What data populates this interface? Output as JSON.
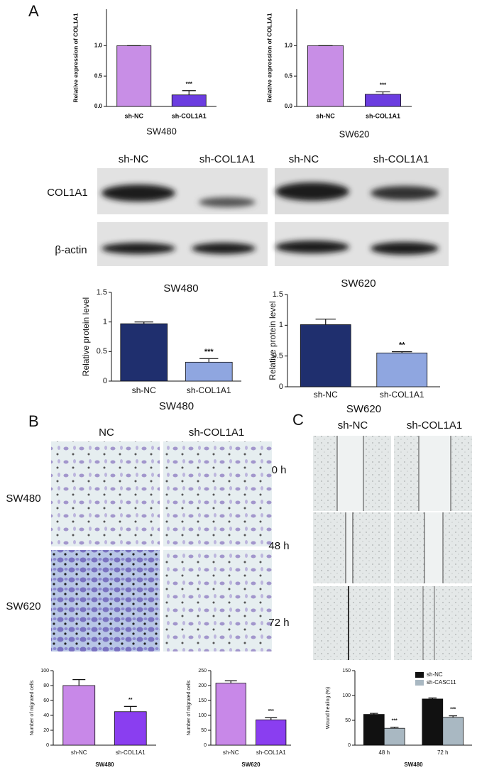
{
  "panels": {
    "A": {
      "label": "A",
      "blot": {
        "lanes": [
          "sh-NC",
          "sh-COL1A1",
          "sh-NC",
          "sh-COL1A1"
        ],
        "proteins": [
          "COL1A1",
          "β-actin"
        ],
        "cell_lines": [
          "SW480",
          "SW620"
        ]
      }
    },
    "B": {
      "label": "B",
      "columns": [
        "NC",
        "sh-COL1A1"
      ],
      "rows": [
        "SW480",
        "SW620"
      ]
    },
    "C": {
      "label": "C",
      "columns": [
        "sh-NC",
        "sh-COL1A1"
      ],
      "rows": [
        "0 h",
        "48 h",
        "72 h"
      ]
    }
  },
  "chart_data": [
    {
      "type": "bar",
      "ylabel": "Relative expression of COL1A1",
      "xlabel": "SW480",
      "categories": [
        "sh-NC",
        "sh-COL1A1"
      ],
      "values": [
        1.0,
        0.19
      ],
      "errors": [
        0,
        0.07
      ],
      "annotations": [
        null,
        "***"
      ],
      "colors": [
        "#c88ee6",
        "#6b3de0"
      ],
      "ylim": [
        0,
        1.6
      ],
      "yticks": [
        {
          "value": 0,
          "label": "0.0"
        },
        {
          "value": 0.5,
          "label": "0.5"
        },
        {
          "value": 1,
          "label": "1.0"
        }
      ]
    },
    {
      "type": "bar",
      "ylabel": "Relative expression of COL1A1",
      "xlabel": "SW620",
      "categories": [
        "sh-NC",
        "sh-COL1A1"
      ],
      "values": [
        1.0,
        0.2
      ],
      "errors": [
        0,
        0.04
      ],
      "annotations": [
        null,
        "***"
      ],
      "colors": [
        "#c88ee6",
        "#6b3de0"
      ],
      "ylim": [
        0,
        1.6
      ],
      "yticks": [
        {
          "value": 0,
          "label": "0.0"
        },
        {
          "value": 0.5,
          "label": "0.5"
        },
        {
          "value": 1,
          "label": "1.0"
        }
      ]
    },
    {
      "type": "bar",
      "ylabel": "Relative protein level",
      "xlabel": "SW480",
      "categories": [
        "sh-NC",
        "sh-COL1A1"
      ],
      "values": [
        0.97,
        0.32
      ],
      "errors": [
        0.03,
        0.06
      ],
      "annotations": [
        null,
        "***"
      ],
      "colors": [
        "#1f2f6e",
        "#8fa6e0"
      ],
      "ylim": [
        0,
        1.5
      ],
      "yticks": [
        0,
        0.5,
        1,
        1.5
      ]
    },
    {
      "type": "bar",
      "ylabel": "Relative protein level",
      "xlabel": "SW620",
      "categories": [
        "sh-NC",
        "sh-COL1A1"
      ],
      "values": [
        1.01,
        0.55
      ],
      "errors": [
        0.09,
        0.02
      ],
      "annotations": [
        null,
        "**"
      ],
      "colors": [
        "#1f2f6e",
        "#8fa6e0"
      ],
      "ylim": [
        0,
        1.5
      ],
      "yticks": [
        0,
        0.5,
        1,
        1.5
      ]
    },
    {
      "type": "bar",
      "ylabel": "Number of migrated cells",
      "xlabel": "SW480",
      "categories": [
        "sh-NC",
        "sh-COL1A1"
      ],
      "values": [
        80,
        45
      ],
      "errors": [
        8,
        7
      ],
      "annotations": [
        null,
        "**"
      ],
      "colors": [
        "#c888e8",
        "#8a3ef0"
      ],
      "ylim": [
        0,
        100
      ],
      "yticks": [
        0,
        20,
        40,
        60,
        80,
        100
      ]
    },
    {
      "type": "bar",
      "ylabel": "Number of migrated cells",
      "xlabel": "SW620",
      "categories": [
        "sh-NC",
        "sh-COL1A1"
      ],
      "values": [
        208,
        85
      ],
      "errors": [
        8,
        7
      ],
      "annotations": [
        null,
        "***"
      ],
      "colors": [
        "#c888e8",
        "#8a3ef0"
      ],
      "ylim": [
        0,
        250
      ],
      "yticks": [
        0,
        50,
        100,
        150,
        200,
        250
      ]
    },
    {
      "type": "grouped_bar",
      "ylabel": "Wound healing (%)",
      "xlabel": "SW480",
      "categories": [
        "48 h",
        "72 h"
      ],
      "legend": "top-right",
      "series": [
        {
          "name": "sh-NC",
          "color": "#111111",
          "values": [
            62,
            93
          ],
          "errors": [
            2,
            2
          ],
          "annotations": [
            null,
            null
          ]
        },
        {
          "name": "sh-CASC11",
          "color": "#a9b8c2",
          "values": [
            34,
            56
          ],
          "errors": [
            2,
            3
          ],
          "annotations": [
            "***",
            "***"
          ]
        }
      ],
      "ylim": [
        0,
        150
      ],
      "yticks": [
        0,
        50,
        100,
        150
      ]
    }
  ]
}
